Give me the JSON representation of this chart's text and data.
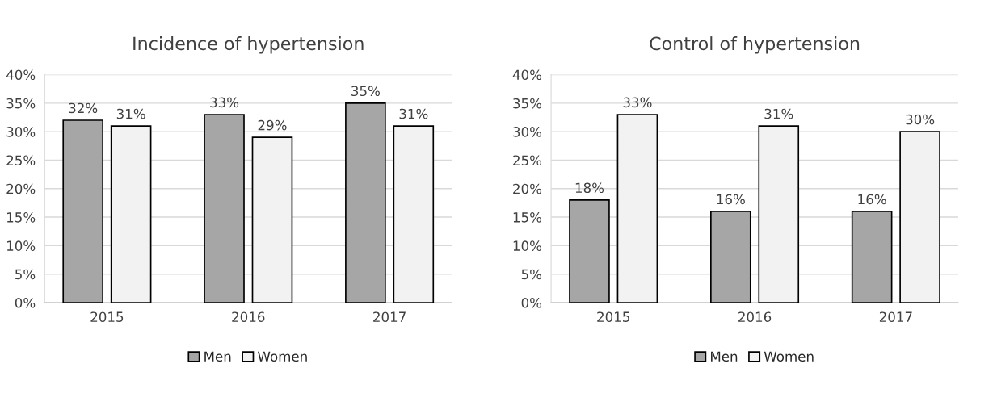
{
  "chart_data": [
    {
      "type": "bar",
      "title": "Incidence of hypertension",
      "categories": [
        "2015",
        "2016",
        "2017"
      ],
      "series": [
        {
          "name": "Men",
          "color": "#a6a6a6",
          "values": [
            32,
            33,
            35
          ],
          "value_labels": [
            "32%",
            "33%",
            "35%"
          ]
        },
        {
          "name": "Women",
          "color": "#f2f2f2",
          "values": [
            31,
            29,
            31
          ],
          "value_labels": [
            "31%",
            "29%",
            "31%"
          ]
        }
      ],
      "ylim": [
        0,
        40
      ],
      "yticks": [
        {
          "value": 0,
          "label": "0%"
        },
        {
          "value": 5,
          "label": "5%"
        },
        {
          "value": 10,
          "label": "10%"
        },
        {
          "value": 15,
          "label": "15%"
        },
        {
          "value": 20,
          "label": "20%"
        },
        {
          "value": 25,
          "label": "25%"
        },
        {
          "value": 30,
          "label": "30%"
        },
        {
          "value": 35,
          "label": "35%"
        },
        {
          "value": 40,
          "label": "40%"
        }
      ],
      "grid": "y",
      "legend": "bottom"
    },
    {
      "type": "bar",
      "title": "Control of hypertension",
      "categories": [
        "2015",
        "2016",
        "2017"
      ],
      "series": [
        {
          "name": "Men",
          "color": "#a6a6a6",
          "values": [
            18,
            16,
            16
          ],
          "value_labels": [
            "18%",
            "16%",
            "16%"
          ]
        },
        {
          "name": "Women",
          "color": "#f2f2f2",
          "values": [
            33,
            31,
            30
          ],
          "value_labels": [
            "33%",
            "31%",
            "30%"
          ]
        }
      ],
      "ylim": [
        0,
        40
      ],
      "yticks": [
        {
          "value": 0,
          "label": "0%"
        },
        {
          "value": 5,
          "label": "5%"
        },
        {
          "value": 10,
          "label": "10%"
        },
        {
          "value": 15,
          "label": "15%"
        },
        {
          "value": 20,
          "label": "20%"
        },
        {
          "value": 25,
          "label": "25%"
        },
        {
          "value": 30,
          "label": "30%"
        },
        {
          "value": 35,
          "label": "35%"
        },
        {
          "value": 40,
          "label": "40%"
        }
      ],
      "grid": "y",
      "legend": "bottom"
    }
  ]
}
